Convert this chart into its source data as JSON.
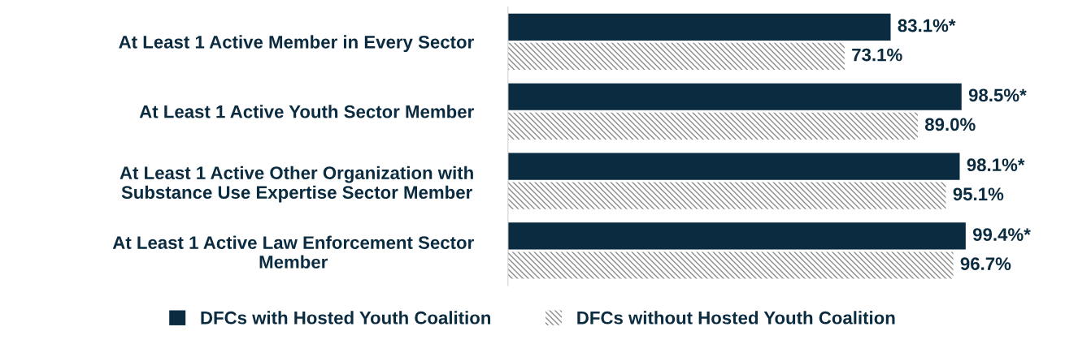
{
  "chart_data": {
    "type": "bar",
    "orientation": "horizontal",
    "categories": [
      "At Least 1 Active Member in Every Sector",
      "At Least 1 Active Youth Sector Member",
      "At Least 1 Active Other Organization with\nSubstance Use Expertise Sector Member",
      "At Least 1 Active Law Enforcement Sector\nMember"
    ],
    "series": [
      {
        "name": "DFCs with Hosted Youth Coalition",
        "color": "#0b2c40",
        "values": [
          83.1,
          98.5,
          98.1,
          99.4
        ],
        "value_labels": [
          "83.1%*",
          "98.5%*",
          "98.1%*",
          "99.4%*"
        ]
      },
      {
        "name": "DFCs without Hosted Youth Coalition",
        "color": "#8c8c8c",
        "values": [
          73.1,
          89.0,
          95.1,
          96.7
        ],
        "value_labels": [
          "73.1%",
          "89.0%",
          "95.1%",
          "96.7%"
        ]
      }
    ],
    "legend": "bottom",
    "grid": false
  }
}
